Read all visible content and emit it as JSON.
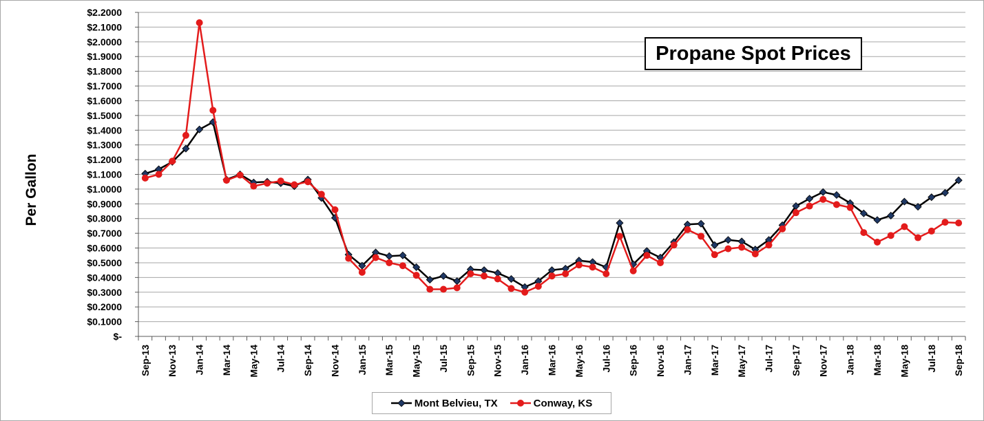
{
  "chart_data": {
    "type": "line",
    "title": "Propane Spot Prices",
    "xlabel": "",
    "ylabel": "Per Gallon",
    "ylim": [
      0,
      2.2
    ],
    "ytick_step": 0.1,
    "ytick_labels": [
      "$-",
      "$0.1000",
      "$0.2000",
      "$0.3000",
      "$0.4000",
      "$0.5000",
      "$0.6000",
      "$0.7000",
      "$0.8000",
      "$0.9000",
      "$1.0000",
      "$1.1000",
      "$1.2000",
      "$1.3000",
      "$1.4000",
      "$1.5000",
      "$1.6000",
      "$1.7000",
      "$1.8000",
      "$1.9000",
      "$2.0000",
      "$2.1000",
      "$2.2000"
    ],
    "xtick_labels": [
      "Sep-13",
      "Nov-13",
      "Jan-14",
      "Mar-14",
      "May-14",
      "Jul-14",
      "Sep-14",
      "Nov-14",
      "Jan-15",
      "Mar-15",
      "May-15",
      "Jul-15",
      "Sep-15",
      "Nov-15",
      "Jan-16",
      "Mar-16",
      "May-16",
      "Jul-16",
      "Sep-16",
      "Nov-16",
      "Jan-17",
      "Mar-17",
      "May-17",
      "Jul-17",
      "Sep-17",
      "Nov-17",
      "Jan-18",
      "Mar-18",
      "May-18",
      "Jul-18",
      "Sep-18"
    ],
    "grid": true,
    "legend_position": "bottom",
    "series": [
      {
        "name": "Mont Belvieu, TX",
        "color": "#000000",
        "marker_color": "#1f3864",
        "marker": "diamond",
        "values": [
          1.105,
          1.135,
          1.185,
          1.275,
          1.405,
          1.455,
          1.065,
          1.1,
          1.045,
          1.05,
          1.04,
          1.02,
          1.065,
          0.94,
          0.805,
          0.555,
          0.48,
          0.57,
          0.545,
          0.55,
          0.47,
          0.385,
          0.41,
          0.375,
          0.455,
          0.45,
          0.43,
          0.39,
          0.335,
          0.375,
          0.45,
          0.46,
          0.515,
          0.505,
          0.47,
          0.77,
          0.49,
          0.58,
          0.535,
          0.64,
          0.76,
          0.765,
          0.62,
          0.655,
          0.645,
          0.59,
          0.655,
          0.755,
          0.885,
          0.935,
          0.98,
          0.96,
          0.905,
          0.835,
          0.79,
          0.82,
          0.915,
          0.88,
          0.945,
          0.975,
          1.06
        ]
      },
      {
        "name": "Conway, KS",
        "color": "#e31b1b",
        "marker_color": "#e31b1b",
        "marker": "circle",
        "values": [
          1.075,
          1.1,
          1.19,
          1.365,
          2.13,
          1.535,
          1.06,
          1.095,
          1.02,
          1.04,
          1.055,
          1.03,
          1.05,
          0.965,
          0.86,
          0.53,
          0.435,
          0.535,
          0.5,
          0.48,
          0.415,
          0.32,
          0.32,
          0.33,
          0.425,
          0.41,
          0.39,
          0.325,
          0.3,
          0.34,
          0.41,
          0.425,
          0.485,
          0.47,
          0.425,
          0.68,
          0.445,
          0.55,
          0.5,
          0.62,
          0.725,
          0.68,
          0.555,
          0.595,
          0.605,
          0.56,
          0.62,
          0.73,
          0.84,
          0.885,
          0.93,
          0.895,
          0.875,
          0.705,
          0.64,
          0.685,
          0.745,
          0.67,
          0.715,
          0.775,
          0.77
        ]
      }
    ]
  }
}
